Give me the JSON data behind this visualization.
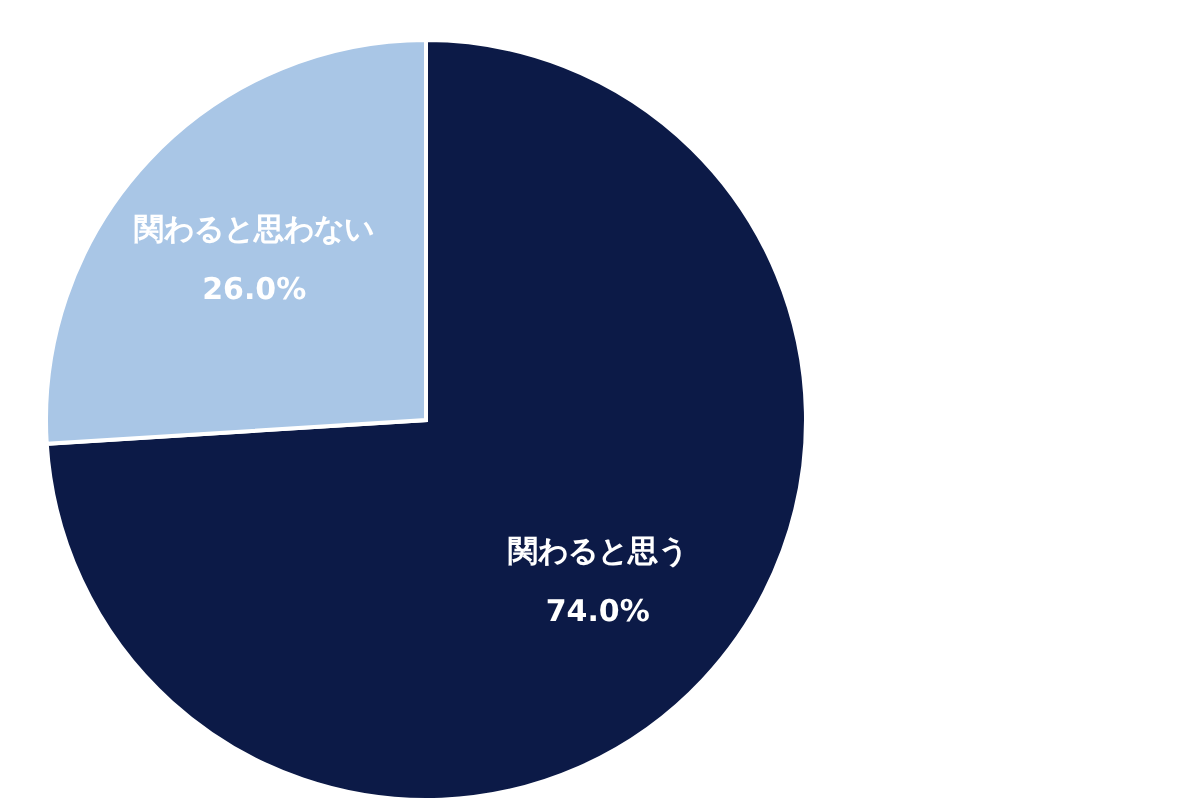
{
  "chart_data": {
    "type": "pie",
    "categories": [
      "関わると思う",
      "関わると思わない"
    ],
    "values": [
      74.0,
      26.0
    ],
    "colors": [
      "#0c1a47",
      "#a9c6e6"
    ],
    "value_labels": [
      "74.0%",
      "26.0%"
    ]
  }
}
